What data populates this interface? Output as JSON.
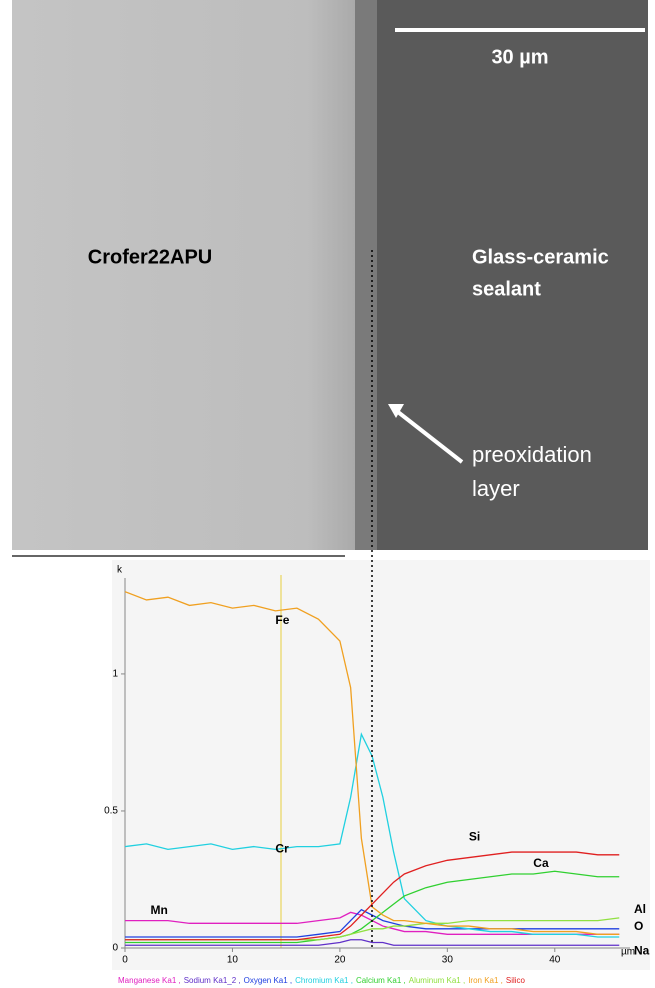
{
  "image": {
    "scale_bar": "30 µm",
    "left_label": "Crofer22APU",
    "right_label": [
      "Glass-ceramic",
      "sealant"
    ],
    "arrow_label": [
      "preoxidation",
      "layer"
    ]
  },
  "chart_data": {
    "type": "line",
    "y_label": "k",
    "x_label": "µm",
    "x": [
      0,
      2,
      4,
      6,
      8,
      10,
      12,
      14,
      16,
      18,
      20,
      21,
      22,
      23,
      24,
      25,
      26,
      28,
      30,
      32,
      34,
      36,
      38,
      40,
      42,
      44,
      46
    ],
    "xlim": [
      0,
      47
    ],
    "xticks": [
      0,
      10,
      20,
      30,
      40
    ],
    "ylim": [
      0,
      1.35
    ],
    "yticks": [
      0,
      0.5,
      1
    ],
    "series": [
      {
        "name": "Manganese Ka1 ,",
        "label": "Mn",
        "color": "#e020c0",
        "values": [
          0.1,
          0.1,
          0.1,
          0.09,
          0.09,
          0.09,
          0.09,
          0.09,
          0.09,
          0.1,
          0.11,
          0.13,
          0.12,
          0.1,
          0.08,
          0.07,
          0.06,
          0.06,
          0.05,
          0.05,
          0.05,
          0.05,
          0.05,
          0.05,
          0.05,
          0.05,
          0.05
        ]
      },
      {
        "name": "Sodium Ka1_2 ,",
        "label": "Na",
        "color": "#6030c8",
        "values": [
          0.01,
          0.01,
          0.01,
          0.01,
          0.01,
          0.01,
          0.01,
          0.01,
          0.01,
          0.01,
          0.02,
          0.03,
          0.03,
          0.02,
          0.02,
          0.01,
          0.01,
          0.01,
          0.01,
          0.01,
          0.01,
          0.01,
          0.01,
          0.01,
          0.01,
          0.01,
          0.01
        ]
      },
      {
        "name": "Oxygen Ka1 ,",
        "label": "O",
        "color": "#2040e0",
        "values": [
          0.04,
          0.04,
          0.04,
          0.04,
          0.04,
          0.04,
          0.04,
          0.04,
          0.04,
          0.05,
          0.06,
          0.1,
          0.14,
          0.12,
          0.1,
          0.09,
          0.08,
          0.07,
          0.07,
          0.07,
          0.07,
          0.07,
          0.07,
          0.07,
          0.07,
          0.07,
          0.07
        ]
      },
      {
        "name": "Chromium Ka1 ,",
        "label": "Cr",
        "color": "#20d0e0",
        "values": [
          0.37,
          0.38,
          0.36,
          0.37,
          0.38,
          0.36,
          0.37,
          0.36,
          0.37,
          0.37,
          0.38,
          0.55,
          0.78,
          0.7,
          0.55,
          0.35,
          0.18,
          0.1,
          0.08,
          0.07,
          0.06,
          0.06,
          0.05,
          0.05,
          0.05,
          0.04,
          0.04
        ]
      },
      {
        "name": "Calcium Ka1 ,",
        "label": "Ca",
        "color": "#30d030",
        "values": [
          0.02,
          0.02,
          0.02,
          0.02,
          0.02,
          0.02,
          0.02,
          0.02,
          0.02,
          0.03,
          0.04,
          0.05,
          0.07,
          0.1,
          0.13,
          0.16,
          0.19,
          0.22,
          0.24,
          0.25,
          0.26,
          0.27,
          0.27,
          0.28,
          0.27,
          0.26,
          0.26
        ]
      },
      {
        "name": "Aluminum Ka1 ,",
        "label": "Al",
        "color": "#90e040",
        "values": [
          0.03,
          0.03,
          0.03,
          0.03,
          0.03,
          0.03,
          0.03,
          0.03,
          0.03,
          0.03,
          0.04,
          0.05,
          0.06,
          0.07,
          0.07,
          0.08,
          0.08,
          0.09,
          0.09,
          0.1,
          0.1,
          0.1,
          0.1,
          0.1,
          0.1,
          0.1,
          0.11
        ]
      },
      {
        "name": "Iron Ka1 ,",
        "label": "Fe",
        "color": "#f0a020",
        "values": [
          1.3,
          1.27,
          1.28,
          1.25,
          1.26,
          1.24,
          1.25,
          1.23,
          1.24,
          1.2,
          1.12,
          0.95,
          0.4,
          0.15,
          0.12,
          0.1,
          0.1,
          0.09,
          0.08,
          0.08,
          0.07,
          0.07,
          0.06,
          0.06,
          0.06,
          0.05,
          0.05
        ]
      },
      {
        "name": "Silico",
        "label": "Si",
        "color": "#e02020",
        "values": [
          0.03,
          0.03,
          0.03,
          0.03,
          0.03,
          0.03,
          0.03,
          0.03,
          0.03,
          0.04,
          0.05,
          0.08,
          0.12,
          0.16,
          0.2,
          0.24,
          0.27,
          0.3,
          0.32,
          0.33,
          0.34,
          0.35,
          0.35,
          0.35,
          0.35,
          0.34,
          0.34
        ]
      }
    ]
  }
}
